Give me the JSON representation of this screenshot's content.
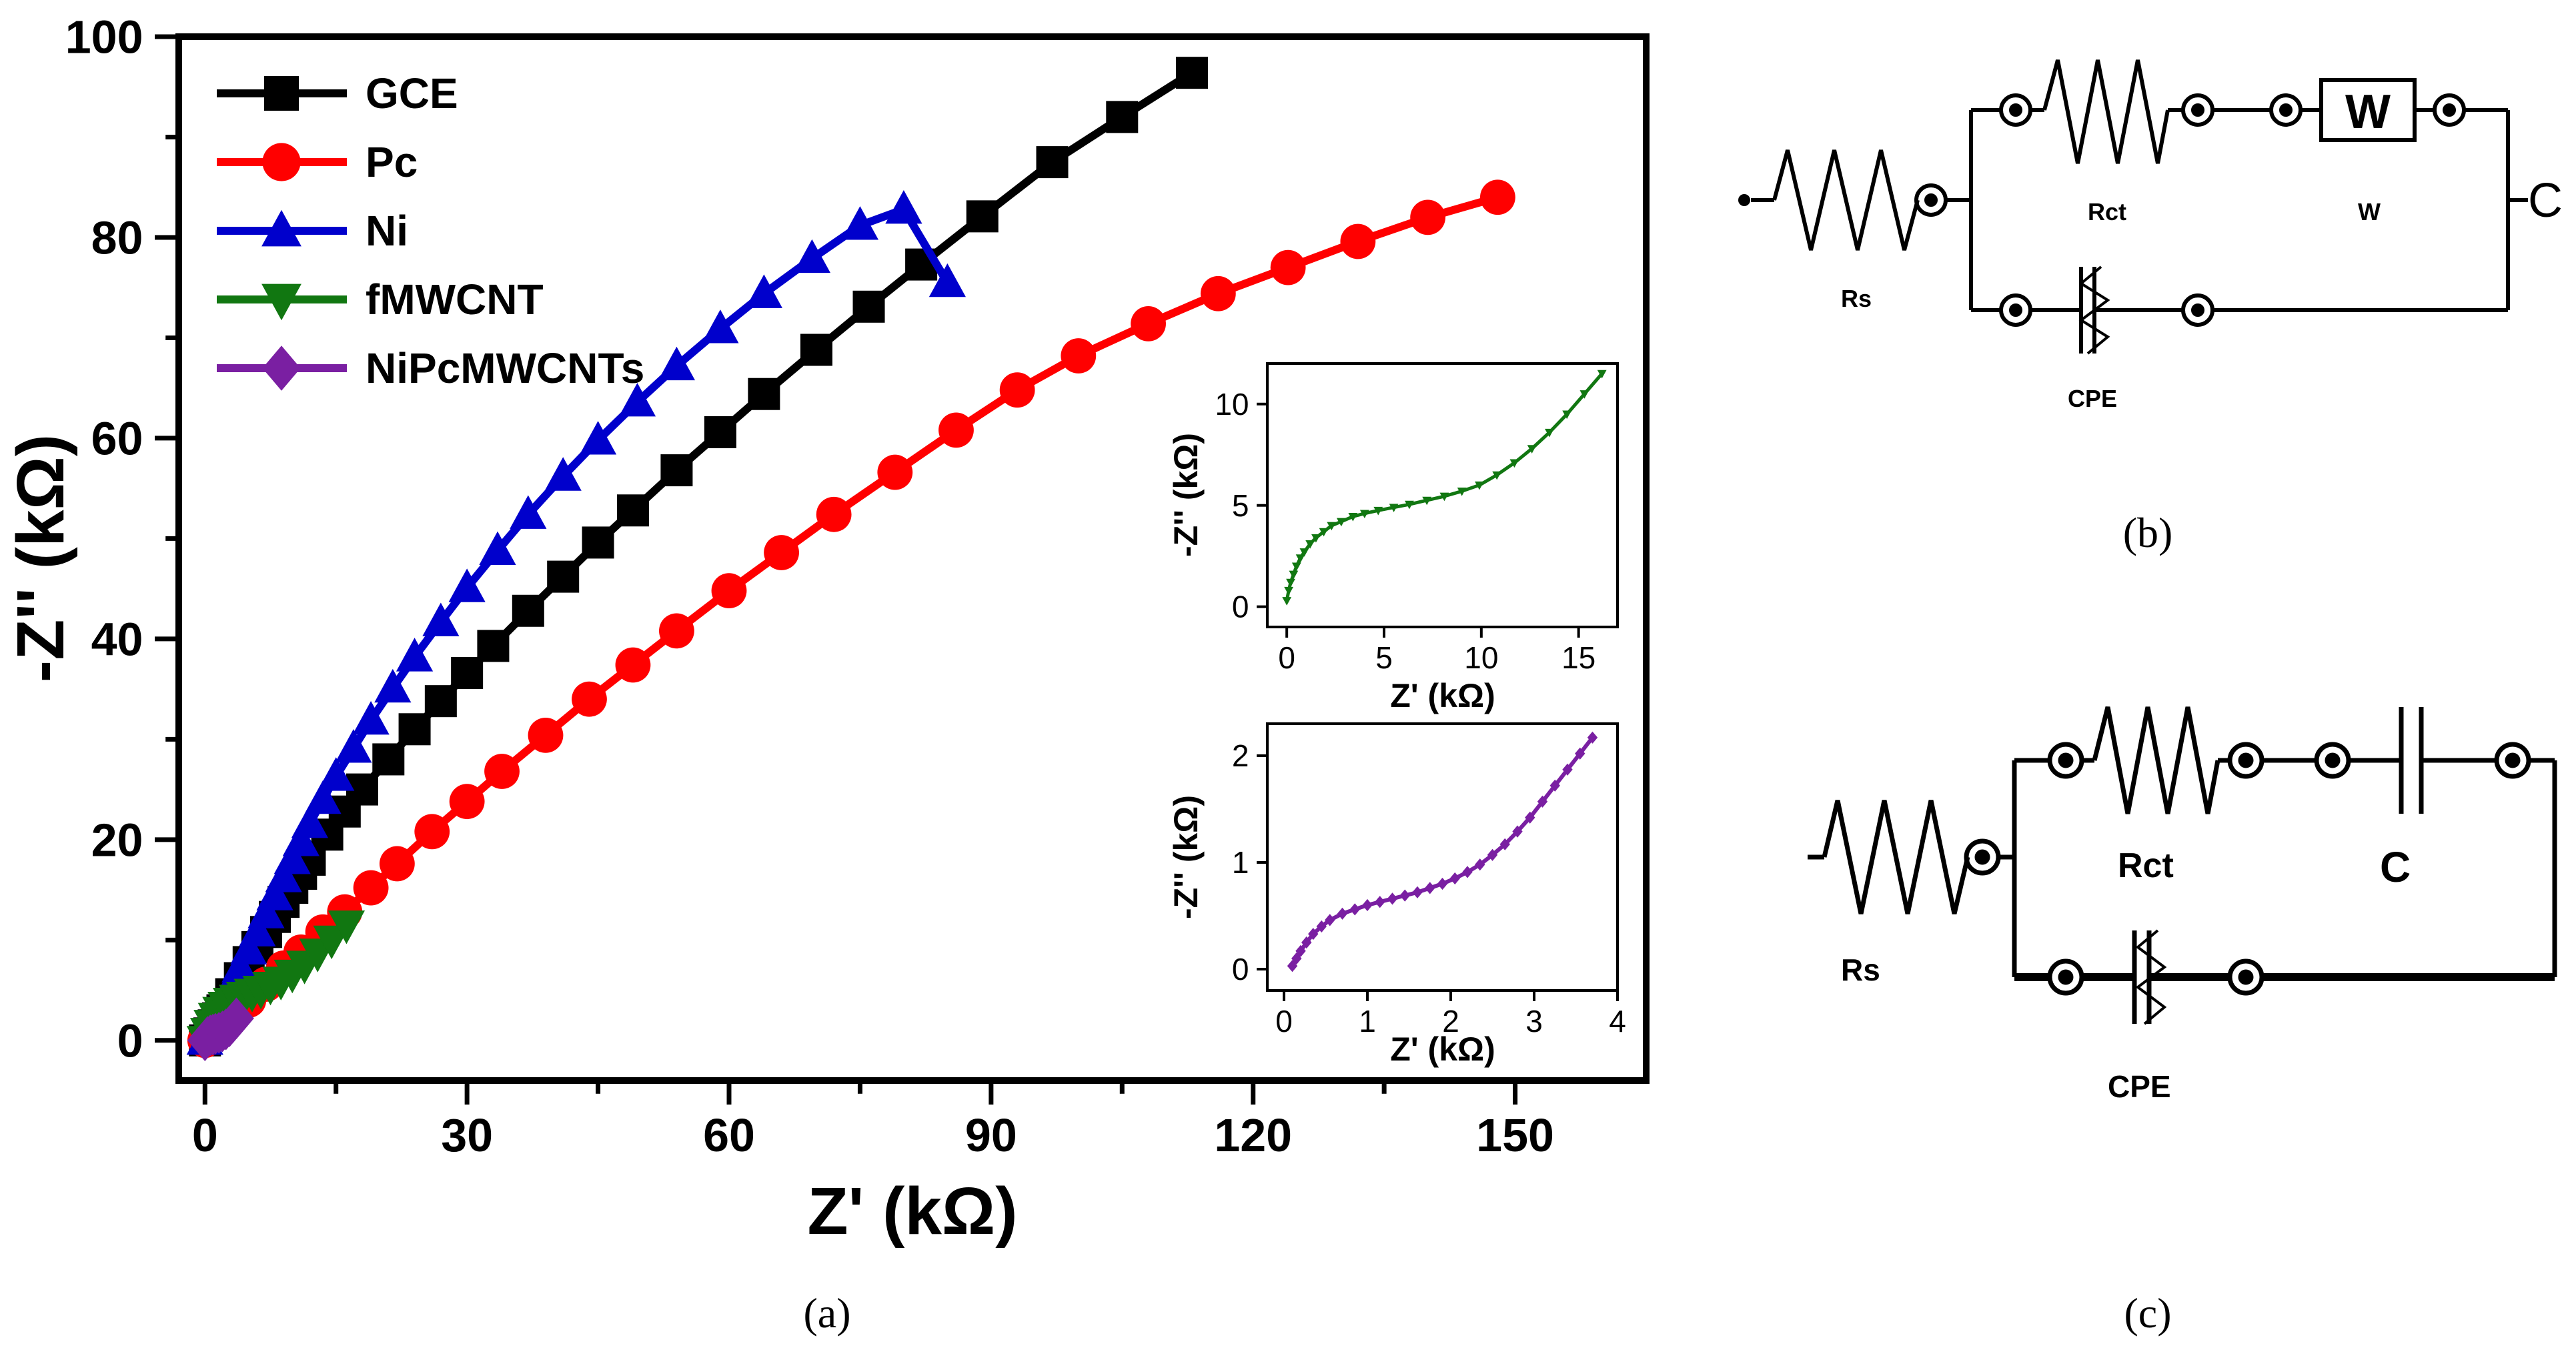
{
  "chart_data": [
    {
      "type": "line",
      "panel_label": "(a)",
      "title": "",
      "xlabel": "Z' (kΩ)",
      "ylabel": "-Z'' (kΩ)",
      "xlim": [
        -3,
        165
      ],
      "ylim": [
        -4,
        100
      ],
      "xticks": [
        0,
        30,
        60,
        90,
        120,
        150
      ],
      "yticks": [
        0,
        20,
        40,
        60,
        80,
        100
      ],
      "legend_position": "top-left",
      "series": [
        {
          "name": "GCE",
          "color": "#000000",
          "marker": "square",
          "x": [
            0,
            0.5,
            1,
            1.5,
            2,
            3,
            4,
            5,
            6,
            7,
            8,
            9,
            10,
            11,
            12,
            14,
            16,
            18,
            21,
            24,
            27,
            30,
            33,
            37,
            41,
            45,
            49,
            54,
            59,
            64,
            70,
            76,
            82,
            89,
            97,
            105,
            113
          ],
          "y": [
            0,
            0.7,
            1.5,
            2.2,
            3,
            4.6,
            6.2,
            7.8,
            9.3,
            10.8,
            12.3,
            13.8,
            15.2,
            16.6,
            18,
            20.5,
            22.8,
            25,
            28,
            31,
            33.8,
            36.6,
            39.3,
            42.8,
            46.2,
            49.6,
            52.8,
            56.8,
            60.6,
            64.4,
            68.8,
            73.1,
            77.3,
            82.1,
            87.5,
            92,
            96.4
          ]
        },
        {
          "name": "Pc",
          "color": "#ff0000",
          "marker": "circle",
          "x": [
            0,
            1,
            2,
            3.5,
            5,
            7,
            9,
            11,
            13.5,
            16,
            19,
            22,
            26,
            30,
            34,
            39,
            44,
            49,
            54,
            60,
            66,
            72,
            79,
            86,
            93,
            100,
            108,
            116,
            124,
            132,
            140,
            148
          ],
          "y": [
            0,
            0.8,
            1.6,
            2.8,
            4,
            5.6,
            7.2,
            8.8,
            10.8,
            12.8,
            15.2,
            17.6,
            20.8,
            23.8,
            26.8,
            30.4,
            34,
            37.4,
            40.8,
            44.8,
            48.6,
            52.4,
            56.6,
            60.8,
            64.8,
            68.2,
            71.4,
            74.4,
            77,
            79.6,
            82,
            84
          ]
        },
        {
          "name": "Ni",
          "color": "#0000cc",
          "marker": "triangle-up",
          "x": [
            0,
            0.5,
            1,
            1.5,
            2,
            3,
            4,
            5,
            6,
            7,
            8,
            9,
            10,
            11,
            12,
            13.5,
            15,
            17,
            19,
            21.5,
            24,
            27,
            30,
            33.5,
            37,
            41,
            45,
            49.5,
            54,
            59,
            64,
            69.5,
            75,
            80,
            85
          ],
          "y": [
            0,
            0.9,
            1.8,
            2.7,
            3.6,
            5.4,
            7.2,
            9,
            10.8,
            12.6,
            14.4,
            16.2,
            18,
            19.8,
            21.6,
            24,
            26.3,
            29.1,
            31.9,
            35.1,
            38.2,
            41.7,
            45.1,
            48.8,
            52.4,
            56.2,
            59.8,
            63.6,
            67.2,
            70.9,
            74.4,
            77.9,
            81.2,
            82.8,
            75.5
          ]
        },
        {
          "name": "fMWCNT",
          "color": "#117711",
          "marker": "triangle-down",
          "x": [
            0,
            0.4,
            0.8,
            1.3,
            1.8,
            2.4,
            3,
            3.7,
            4.5,
            5.4,
            6.4,
            7.5,
            8.7,
            10,
            11.4,
            12.9,
            14.5,
            16.2
          ],
          "y": [
            0,
            0.8,
            1.6,
            2.3,
            2.9,
            3.4,
            3.8,
            4.1,
            4.4,
            4.7,
            5,
            5.4,
            5.9,
            6.6,
            7.5,
            8.7,
            10,
            11.5
          ]
        },
        {
          "name": "NiPcMWCNTs",
          "color": "#7a1fa2",
          "marker": "diamond",
          "x": [
            0,
            0.3,
            0.6,
            0.9,
            1.2,
            1.6,
            2,
            2.4,
            2.8,
            3.2,
            3.6
          ],
          "y": [
            0,
            0.35,
            0.5,
            0.58,
            0.66,
            0.76,
            0.9,
            1.1,
            1.4,
            1.8,
            2.2
          ]
        }
      ]
    },
    {
      "type": "line",
      "panel_label": "inset-fMWCNT",
      "xlabel": "Z' (kΩ)",
      "ylabel": "-Z'' (kΩ)",
      "xlim": [
        -1,
        17
      ],
      "ylim": [
        -1,
        12
      ],
      "xticks": [
        0,
        5,
        10,
        15
      ],
      "yticks": [
        0,
        5,
        10
      ],
      "series": [
        {
          "name": "fMWCNT",
          "color": "#117711",
          "marker": "triangle-down",
          "x": [
            0,
            0.1,
            0.2,
            0.35,
            0.5,
            0.7,
            0.9,
            1.2,
            1.5,
            1.9,
            2.3,
            2.8,
            3.4,
            4,
            4.7,
            5.5,
            6.3,
            7.2,
            8.1,
            9,
            9.9,
            10.8,
            11.7,
            12.6,
            13.5,
            14.4,
            15.3,
            16.2
          ],
          "y": [
            0.3,
            0.8,
            1.2,
            1.6,
            2,
            2.4,
            2.7,
            3.1,
            3.4,
            3.7,
            4,
            4.2,
            4.45,
            4.6,
            4.75,
            4.9,
            5.05,
            5.25,
            5.45,
            5.7,
            6,
            6.5,
            7.1,
            7.8,
            8.6,
            9.5,
            10.5,
            11.5
          ]
        }
      ]
    },
    {
      "type": "line",
      "panel_label": "inset-NiPcMWCNTs",
      "xlabel": "Z' (kΩ)",
      "ylabel": "-Z'' (kΩ)",
      "xlim": [
        -0.2,
        4
      ],
      "ylim": [
        -0.2,
        2.3
      ],
      "xticks": [
        0,
        1,
        2,
        3,
        4
      ],
      "yticks": [
        0,
        1,
        2
      ],
      "series": [
        {
          "name": "NiPcMWCNTs",
          "color": "#7a1fa2",
          "marker": "diamond",
          "x": [
            0.1,
            0.15,
            0.2,
            0.27,
            0.35,
            0.45,
            0.55,
            0.7,
            0.85,
            1,
            1.15,
            1.3,
            1.45,
            1.6,
            1.75,
            1.9,
            2.05,
            2.2,
            2.35,
            2.5,
            2.65,
            2.8,
            2.95,
            3.1,
            3.25,
            3.4,
            3.55,
            3.7
          ],
          "y": [
            0.03,
            0.1,
            0.17,
            0.25,
            0.33,
            0.4,
            0.46,
            0.52,
            0.56,
            0.6,
            0.63,
            0.66,
            0.69,
            0.72,
            0.76,
            0.8,
            0.85,
            0.91,
            0.98,
            1.07,
            1.17,
            1.29,
            1.42,
            1.57,
            1.72,
            1.87,
            2.02,
            2.17
          ]
        }
      ]
    }
  ],
  "circuits": {
    "b": {
      "label": "(b)",
      "rs": "Rs",
      "rct": "Rct",
      "w_box": "W",
      "w": "W",
      "cpe": "CPE",
      "end": "C"
    },
    "c": {
      "label": "(c)",
      "rs": "Rs",
      "rct": "Rct",
      "c": "C",
      "cpe": "CPE"
    }
  }
}
